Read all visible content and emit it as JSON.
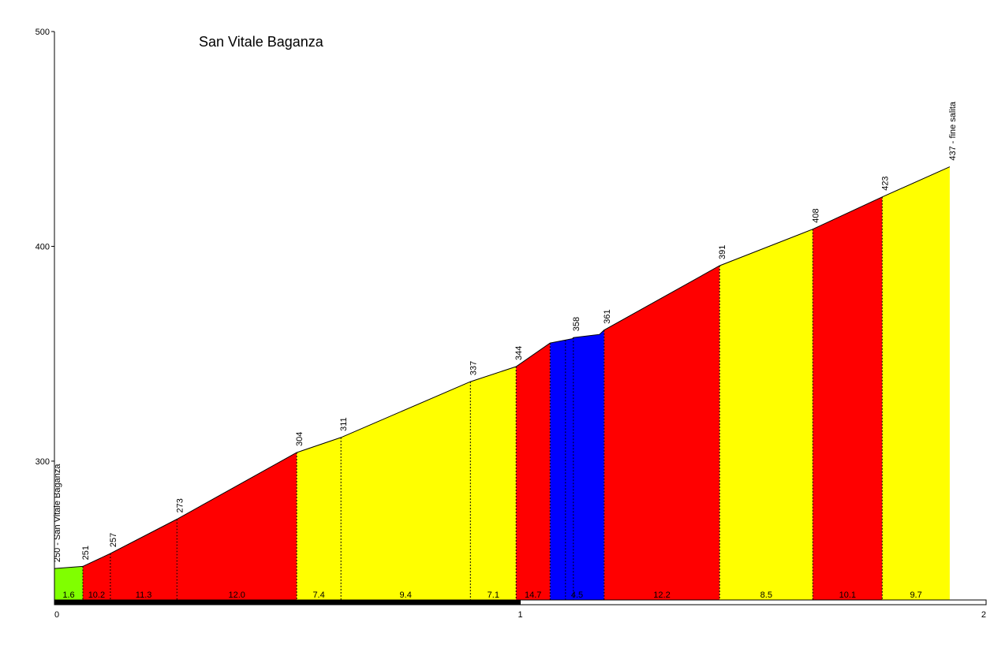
{
  "chart_data": {
    "type": "area",
    "title": "San Vitale Baganza",
    "xlabel": "",
    "ylabel": "",
    "xlim": [
      0,
      2
    ],
    "ylim": [
      235,
      500
    ],
    "x_ticks": [
      "0",
      "1",
      "2"
    ],
    "y_ticks": [
      "300",
      "400",
      "500"
    ],
    "profile": [
      {
        "x": 0.0,
        "y": 250
      },
      {
        "x": 0.061,
        "y": 251
      },
      {
        "x": 0.12,
        "y": 257
      },
      {
        "x": 0.263,
        "y": 273
      },
      {
        "x": 0.52,
        "y": 304
      },
      {
        "x": 0.615,
        "y": 311
      },
      {
        "x": 0.893,
        "y": 337
      },
      {
        "x": 0.991,
        "y": 344
      },
      {
        "x": 1.064,
        "y": 355
      },
      {
        "x": 1.112,
        "y": 357
      },
      {
        "x": 1.114,
        "y": 357.5
      },
      {
        "x": 1.17,
        "y": 359
      },
      {
        "x": 1.18,
        "y": 361
      },
      {
        "x": 1.428,
        "y": 391
      },
      {
        "x": 1.628,
        "y": 408
      },
      {
        "x": 1.777,
        "y": 423
      },
      {
        "x": 1.922,
        "y": 437
      }
    ],
    "segments": [
      {
        "x0": 0.0,
        "x1": 0.061,
        "grade": "1.6",
        "color": "#80ff00"
      },
      {
        "x0": 0.061,
        "x1": 0.12,
        "grade": "10.2",
        "color": "#ff0000"
      },
      {
        "x0": 0.12,
        "x1": 0.263,
        "grade": "11.3",
        "color": "#ff0000"
      },
      {
        "x0": 0.263,
        "x1": 0.52,
        "grade": "12.0",
        "color": "#ff0000"
      },
      {
        "x0": 0.52,
        "x1": 0.615,
        "grade": "7.4",
        "color": "#ffff00"
      },
      {
        "x0": 0.615,
        "x1": 0.893,
        "grade": "9.4",
        "color": "#ffff00"
      },
      {
        "x0": 0.893,
        "x1": 0.991,
        "grade": "7.1",
        "color": "#ffff00"
      },
      {
        "x0": 0.991,
        "x1": 1.064,
        "grade": "14.7",
        "color": "#ff0000"
      },
      {
        "x0": 1.064,
        "x1": 1.18,
        "grade": "4.5",
        "color": "#0000ff"
      },
      {
        "x0": 1.18,
        "x1": 1.428,
        "grade": "12.2",
        "color": "#ff0000"
      },
      {
        "x0": 1.428,
        "x1": 1.628,
        "grade": "8.5",
        "color": "#ffff00"
      },
      {
        "x0": 1.628,
        "x1": 1.777,
        "grade": "10.1",
        "color": "#ff0000"
      },
      {
        "x0": 1.777,
        "x1": 1.922,
        "grade": "9.7",
        "color": "#ffff00"
      }
    ],
    "dividers": [
      0.061,
      0.12,
      0.263,
      0.52,
      0.615,
      0.893,
      0.991,
      1.064,
      1.097,
      1.114,
      1.18,
      1.428,
      1.628,
      1.777
    ],
    "elevation_labels": [
      {
        "x": 0.0,
        "y": 250,
        "text": "250 - San Vitale Baganza"
      },
      {
        "x": 0.061,
        "y": 251,
        "text": "251"
      },
      {
        "x": 0.12,
        "y": 257,
        "text": "257"
      },
      {
        "x": 0.263,
        "y": 273,
        "text": "273"
      },
      {
        "x": 0.52,
        "y": 304,
        "text": "304"
      },
      {
        "x": 0.615,
        "y": 311,
        "text": "311"
      },
      {
        "x": 0.893,
        "y": 337,
        "text": "337"
      },
      {
        "x": 0.991,
        "y": 344,
        "text": "344"
      },
      {
        "x": 1.114,
        "y": 357.5,
        "text": "358"
      },
      {
        "x": 1.18,
        "y": 361,
        "text": "361"
      },
      {
        "x": 1.428,
        "y": 391,
        "text": "391"
      },
      {
        "x": 1.628,
        "y": 408,
        "text": "408"
      },
      {
        "x": 1.777,
        "y": 423,
        "text": "423"
      },
      {
        "x": 1.922,
        "y": 437,
        "text": "437 - fine salita"
      }
    ],
    "distance_bar": [
      {
        "x0": 0,
        "x1": 1,
        "color": "#000000"
      },
      {
        "x0": 1,
        "x1": 2,
        "color": "#ffffff"
      }
    ]
  }
}
